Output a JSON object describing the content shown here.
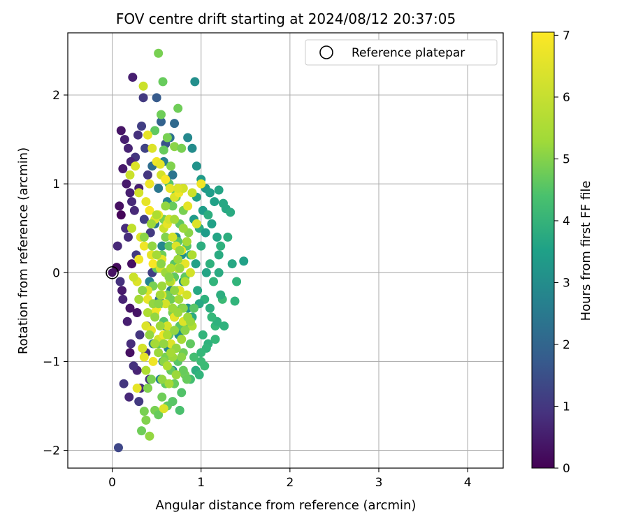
{
  "chart_data": {
    "type": "scatter",
    "title": "FOV centre drift starting at 2024/08/12 20:37:05",
    "xlabel": "Angular distance from reference (arcmin)",
    "ylabel": "Rotation from reference (arcmin)",
    "xlim": [
      -0.5,
      4.4
    ],
    "ylim": [
      -2.2,
      2.7
    ],
    "xticks": [
      0,
      1,
      2,
      3,
      4
    ],
    "yticks": [
      -2,
      -1,
      0,
      1,
      2
    ],
    "xtick_labels": [
      "0",
      "1",
      "2",
      "3",
      "4"
    ],
    "ytick_labels": [
      "−2",
      "−1",
      "0",
      "1",
      "2"
    ],
    "grid": true,
    "legend": {
      "position": "top-right",
      "entries": [
        "Reference platepar"
      ]
    },
    "reference_point": {
      "x": 0,
      "y": 0,
      "label": "Reference platepar"
    },
    "colorbar": {
      "label": "Hours from first FF file",
      "colormap": "viridis",
      "range": [
        0,
        7.05
      ],
      "ticks": [
        0,
        1,
        2,
        3,
        4,
        5,
        6,
        7
      ],
      "tick_labels": [
        "0",
        "1",
        "2",
        "3",
        "4",
        "5",
        "6",
        "7"
      ]
    },
    "series": [
      {
        "x": [
          0.05,
          0.08,
          0.12,
          0.1,
          0.14,
          0.18,
          0.16,
          0.06,
          0.2,
          0.15,
          0.22,
          0.12,
          0.09,
          0.25,
          0.11,
          0.17,
          0.21,
          0.28,
          0.13,
          0.19,
          0.24,
          0.3,
          0.07,
          0.18,
          0.26,
          0.33,
          0.23,
          0.29,
          0.35,
          0.2,
          0.38,
          0.32,
          0.27,
          0.4,
          0.36,
          0.42,
          0.22,
          0.31,
          0.37,
          0.45,
          0.34,
          0.43,
          0.39,
          0.1,
          0.21,
          0.28,
          0.2,
          0.3
        ],
        "y": [
          0.06,
          0.75,
          1.17,
          1.6,
          1.5,
          1.4,
          1.0,
          0.3,
          0.9,
          0.5,
          0.1,
          -0.3,
          -0.1,
          0.7,
          -0.2,
          -0.55,
          -0.8,
          -1.1,
          -1.25,
          -1.4,
          -1.05,
          -1.45,
          -1.97,
          0.4,
          1.3,
          1.65,
          2.2,
          1.55,
          1.97,
          -0.4,
          -0.9,
          -1.3,
          0.2,
          1.1,
          0.6,
          -1.2,
          0.8,
          -0.7,
          1.4,
          0.0,
          -0.2,
          0.45,
          -0.6,
          0.65,
          1.25,
          -0.45,
          -0.9,
          0.95
        ],
        "c": [
          0.2,
          0.3,
          0.5,
          0.4,
          0.6,
          0.7,
          0.5,
          0.8,
          0.6,
          0.9,
          0.3,
          0.7,
          1.0,
          0.8,
          0.5,
          0.6,
          0.9,
          0.7,
          1.1,
          0.8,
          1.0,
          1.2,
          1.5,
          0.9,
          1.1,
          1.3,
          0.6,
          1.0,
          1.2,
          0.4,
          1.0,
          0.9,
          1.2,
          1.1,
          1.3,
          1.0,
          0.8,
          1.1,
          1.4,
          1.3,
          1.5,
          1.2,
          1.4,
          0.1,
          0.7,
          0.4,
          0.3,
          0.6
        ]
      },
      {
        "x": [
          0.5,
          0.55,
          0.6,
          0.45,
          0.65,
          0.7,
          0.58,
          0.52,
          0.62,
          0.68,
          0.48,
          0.74,
          0.56,
          0.64,
          0.72,
          0.42,
          0.78,
          0.53,
          0.66,
          0.6,
          0.46,
          0.7,
          0.8,
          0.57,
          0.63,
          0.75,
          0.4,
          0.68,
          0.54,
          0.85,
          0.61
        ],
        "y": [
          1.97,
          1.7,
          1.45,
          1.2,
          1.52,
          1.68,
          1.25,
          0.95,
          0.8,
          1.1,
          0.55,
          0.9,
          0.3,
          0.6,
          0.4,
          -0.1,
          0.2,
          -0.3,
          -0.2,
          -0.6,
          -0.8,
          -0.5,
          -0.1,
          -1.0,
          -0.85,
          -0.7,
          -1.3,
          -1.1,
          -1.2,
          -0.4,
          1.05
        ],
        "c": [
          2.0,
          2.2,
          1.8,
          2.5,
          2.6,
          2.4,
          3.0,
          2.8,
          3.2,
          2.7,
          2.9,
          3.1,
          3.3,
          3.0,
          3.4,
          3.2,
          3.5,
          2.6,
          3.1,
          3.3,
          3.0,
          3.6,
          3.4,
          2.9,
          3.2,
          3.5,
          2.8,
          3.3,
          3.1,
          3.6,
          3.0
        ]
      },
      {
        "x": [
          0.9,
          0.95,
          1.0,
          1.05,
          1.1,
          1.15,
          1.2,
          1.25,
          0.92,
          0.98,
          1.02,
          1.08,
          1.12,
          1.18,
          1.22,
          1.28,
          0.88,
          0.94,
          1.0,
          1.06,
          1.14,
          1.2,
          0.96,
          1.04,
          1.1,
          1.16,
          0.9,
          1.02,
          1.08,
          1.3,
          1.35,
          1.4,
          1.48,
          1.33,
          1.24,
          1.18,
          1.12,
          1.06,
          1.0,
          0.94,
          0.88,
          1.26,
          1.16,
          1.04,
          0.98,
          0.92,
          1.2,
          1.1,
          0.95,
          1.38,
          0.93,
          1.0,
          1.22,
          1.05,
          0.85,
          0.98
        ],
        "y": [
          1.4,
          1.2,
          1.05,
          0.95,
          0.9,
          0.8,
          0.93,
          0.78,
          0.6,
          0.5,
          0.7,
          0.65,
          0.55,
          0.4,
          0.3,
          0.72,
          0.2,
          0.1,
          0.3,
          0.0,
          -0.1,
          0.2,
          -0.2,
          -0.3,
          -0.4,
          -0.6,
          -0.5,
          -0.7,
          -0.8,
          0.4,
          0.1,
          -0.1,
          0.13,
          0.68,
          -0.3,
          -0.55,
          -0.5,
          -0.85,
          -1.0,
          -1.1,
          -1.2,
          -0.6,
          -0.75,
          -1.05,
          -1.15,
          -0.95,
          0.0,
          0.1,
          0.85,
          -0.32,
          2.15,
          -0.9,
          -0.25,
          0.45,
          1.52,
          -0.35
        ],
        "c": [
          3.4,
          3.6,
          3.8,
          3.7,
          3.9,
          4.0,
          4.1,
          4.2,
          3.8,
          4.3,
          3.9,
          4.4,
          4.0,
          4.1,
          4.5,
          4.2,
          4.3,
          4.0,
          4.4,
          4.1,
          4.6,
          4.3,
          4.2,
          4.5,
          4.4,
          4.7,
          4.3,
          4.6,
          4.5,
          4.4,
          4.2,
          4.6,
          4.0,
          4.3,
          4.8,
          4.5,
          4.7,
          4.6,
          4.8,
          4.4,
          4.9,
          4.5,
          4.7,
          4.8,
          4.6,
          4.9,
          4.3,
          4.5,
          4.0,
          4.6,
          3.5,
          4.7,
          4.4,
          3.9,
          3.3,
          4.2
        ]
      },
      {
        "x": [
          0.52,
          0.57,
          0.55,
          0.48,
          0.62,
          0.58,
          0.66,
          0.7,
          0.74,
          0.78,
          0.64,
          0.68,
          0.72,
          0.76,
          0.8,
          0.84,
          0.6,
          0.56,
          0.5,
          0.46,
          0.54,
          0.62,
          0.66,
          0.7,
          0.74,
          0.78,
          0.82,
          0.86,
          0.58,
          0.64,
          0.68,
          0.72,
          0.76,
          0.8,
          0.52,
          0.6,
          0.66,
          0.74,
          0.82,
          0.88,
          0.44,
          0.4,
          0.7,
          0.78,
          0.56,
          0.62,
          0.48,
          0.68,
          0.76,
          0.84,
          0.92,
          0.58,
          0.64,
          0.72,
          0.38,
          0.52,
          0.6,
          0.66,
          0.74,
          0.42,
          0.8,
          0.36,
          0.33,
          0.7
        ],
        "y": [
          2.47,
          2.15,
          1.78,
          1.6,
          1.52,
          1.38,
          1.2,
          1.42,
          1.85,
          1.4,
          1.0,
          0.75,
          0.9,
          0.55,
          0.7,
          0.3,
          0.4,
          0.2,
          0.05,
          -0.15,
          -0.35,
          -0.25,
          -0.1,
          0.1,
          -0.2,
          -0.4,
          -0.05,
          -0.6,
          -0.55,
          -0.7,
          -0.45,
          -0.85,
          -0.6,
          -0.9,
          -0.8,
          -0.95,
          -1.1,
          -1.0,
          -1.15,
          -0.8,
          -1.2,
          -1.3,
          -1.25,
          -1.35,
          -1.4,
          -1.5,
          -1.55,
          -1.45,
          -1.55,
          -1.2,
          -0.4,
          0.6,
          0.3,
          0.85,
          -1.66,
          -1.6,
          -1.25,
          -0.3,
          0.35,
          -1.84,
          -1.1,
          -1.56,
          -1.78,
          -0.05
        ],
        "c": [
          5.6,
          5.4,
          5.5,
          5.3,
          5.6,
          5.4,
          5.7,
          5.8,
          5.5,
          5.6,
          5.2,
          5.4,
          5.5,
          5.3,
          5.6,
          5.2,
          5.7,
          5.5,
          5.4,
          5.6,
          5.3,
          5.5,
          5.7,
          5.2,
          5.4,
          5.6,
          5.3,
          5.5,
          5.1,
          5.3,
          5.6,
          5.4,
          5.2,
          5.5,
          5.3,
          5.6,
          5.4,
          5.2,
          5.5,
          5.3,
          5.6,
          5.7,
          5.4,
          5.1,
          5.5,
          5.3,
          5.6,
          5.2,
          5.0,
          5.4,
          5.2,
          5.6,
          5.3,
          5.5,
          5.7,
          5.4,
          5.3,
          5.5,
          5.2,
          5.9,
          5.4,
          5.6,
          5.5,
          5.3
        ]
      },
      {
        "x": [
          0.35,
          0.4,
          0.45,
          0.5,
          0.55,
          0.6,
          0.65,
          0.7,
          0.75,
          0.8,
          0.85,
          0.9,
          0.95,
          1.0,
          0.3,
          0.38,
          0.42,
          0.48,
          0.52,
          0.58,
          0.62,
          0.68,
          0.72,
          0.78,
          0.82,
          0.88,
          0.32,
          0.36,
          0.44,
          0.46,
          0.54,
          0.56,
          0.64,
          0.66,
          0.74,
          0.76,
          0.84,
          0.28,
          0.34,
          0.4,
          0.5,
          0.6,
          0.7,
          0.8,
          0.24,
          0.3,
          0.38,
          0.44,
          0.52,
          0.58,
          0.66,
          0.72,
          0.22,
          0.26,
          0.42,
          0.54,
          0.64,
          0.74,
          0.2,
          0.36,
          0.48,
          0.56,
          0.62,
          0.68,
          0.58,
          0.46,
          0.34,
          0.28,
          0.4
        ],
        "y": [
          2.1,
          1.55,
          1.4,
          1.25,
          1.1,
          1.05,
          0.95,
          0.85,
          0.9,
          0.95,
          0.75,
          0.9,
          0.55,
          1.0,
          0.9,
          0.8,
          0.7,
          0.6,
          0.65,
          0.5,
          0.55,
          0.4,
          0.3,
          0.25,
          0.1,
          0.0,
          0.4,
          0.3,
          0.2,
          0.1,
          0.05,
          0.15,
          -0.05,
          -0.1,
          0.05,
          -0.2,
          -0.25,
          -0.1,
          -0.2,
          -0.3,
          -0.4,
          -0.35,
          -0.5,
          -0.55,
          -0.05,
          0.15,
          -0.6,
          -0.65,
          -0.75,
          -0.7,
          -0.8,
          -0.85,
          0.5,
          1.2,
          1.0,
          1.22,
          0.6,
          0.95,
          1.1,
          -0.95,
          -0.45,
          -0.25,
          -0.6,
          -0.4,
          -1.53,
          -1.0,
          -0.85,
          -1.3,
          -0.2
        ],
        "c": [
          6.5,
          6.8,
          6.7,
          6.9,
          6.6,
          7.0,
          6.8,
          6.7,
          6.9,
          6.6,
          6.8,
          6.5,
          6.7,
          6.9,
          6.6,
          6.8,
          7.0,
          6.7,
          6.9,
          6.5,
          6.8,
          6.6,
          6.7,
          6.9,
          6.8,
          6.6,
          6.7,
          6.9,
          6.8,
          7.0,
          6.6,
          6.8,
          6.7,
          6.9,
          6.5,
          6.8,
          6.6,
          6.7,
          6.9,
          6.8,
          7.0,
          6.6,
          6.8,
          6.7,
          6.5,
          6.9,
          6.7,
          6.8,
          6.6,
          6.9,
          6.7,
          6.8,
          6.4,
          6.7,
          6.9,
          6.8,
          6.6,
          6.7,
          6.5,
          6.8,
          6.9,
          6.7,
          6.6,
          6.8,
          6.7,
          6.9,
          6.6,
          6.8,
          6.7
        ]
      },
      {
        "x": [
          0.45,
          0.5,
          0.55,
          0.6,
          0.65,
          0.7,
          0.75,
          0.8,
          0.85,
          0.9,
          0.42,
          0.48,
          0.52,
          0.58,
          0.62,
          0.68,
          0.72,
          0.78,
          0.82,
          0.88,
          0.4,
          0.46,
          0.54,
          0.56,
          0.64,
          0.66,
          0.74,
          0.76,
          0.84,
          0.86,
          0.44,
          0.5,
          0.6,
          0.7,
          0.8,
          0.36,
          0.38,
          0.56,
          0.64,
          0.72,
          0.78,
          0.62,
          0.54,
          0.48,
          0.3,
          0.34,
          0.68,
          0.82,
          0.58,
          0.66,
          0.74,
          0.52,
          0.9,
          0.76,
          0.7
        ],
        "y": [
          0.3,
          0.2,
          0.1,
          0.0,
          -0.1,
          -0.2,
          -0.3,
          -0.4,
          -0.5,
          -0.6,
          -0.7,
          -0.8,
          -0.9,
          -1.0,
          -1.05,
          -0.95,
          -0.85,
          -0.75,
          -0.65,
          -0.55,
          -0.45,
          -0.35,
          -0.25,
          -0.15,
          -0.05,
          0.05,
          0.15,
          0.25,
          0.35,
          0.45,
          0.55,
          0.65,
          0.75,
          0.6,
          0.5,
          0.4,
          -1.1,
          -1.2,
          -1.25,
          -1.15,
          -0.95,
          -0.7,
          -0.6,
          -0.5,
          -0.3,
          -0.2,
          -0.4,
          -0.1,
          -0.8,
          -0.9,
          -0.45,
          -0.35,
          0.2,
          0.05,
          -0.65
        ],
        "c": [
          5.9,
          6.1,
          5.8,
          6.0,
          6.2,
          5.9,
          6.1,
          5.8,
          6.0,
          6.2,
          5.9,
          6.1,
          6.0,
          5.8,
          6.2,
          6.0,
          5.9,
          6.1,
          5.8,
          6.0,
          6.2,
          5.9,
          6.1,
          6.0,
          5.8,
          6.2,
          6.0,
          5.9,
          6.1,
          5.8,
          6.0,
          6.2,
          5.9,
          6.1,
          6.0,
          5.8,
          6.2,
          5.9,
          6.1,
          6.0,
          5.8,
          6.2,
          6.0,
          5.9,
          6.1,
          5.8,
          6.0,
          6.2,
          5.9,
          6.1,
          6.0,
          5.8,
          6.2,
          6.0,
          5.9
        ]
      }
    ]
  }
}
